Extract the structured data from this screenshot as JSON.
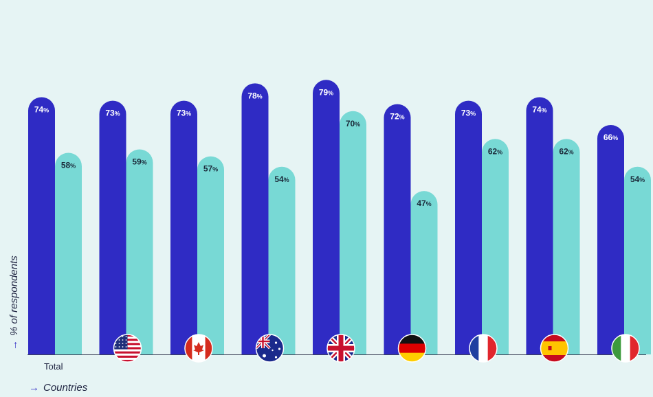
{
  "chart_data": {
    "type": "bar",
    "categories": [
      "Total",
      "United States",
      "Canada",
      "Australia",
      "United Kingdom",
      "Germany",
      "France",
      "Spain",
      "Italy"
    ],
    "series": [
      {
        "values": [
          74,
          73,
          73,
          78,
          79,
          72,
          73,
          74,
          66
        ],
        "color": "#2f2bc4"
      },
      {
        "values": [
          58,
          59,
          57,
          54,
          70,
          47,
          62,
          62,
          54
        ],
        "color": "#78d9d5"
      }
    ],
    "category_icons": [
      "",
      "us-flag-icon",
      "canada-flag-icon",
      "australia-flag-icon",
      "uk-flag-icon",
      "germany-flag-icon",
      "france-flag-icon",
      "spain-flag-icon",
      "italy-flag-icon"
    ],
    "value_suffix": "%",
    "xlabel": "Countries",
    "ylabel": "% of respondents",
    "axis_arrow": "→",
    "ylim": [
      0,
      100
    ],
    "grid": false,
    "legend": "none"
  }
}
